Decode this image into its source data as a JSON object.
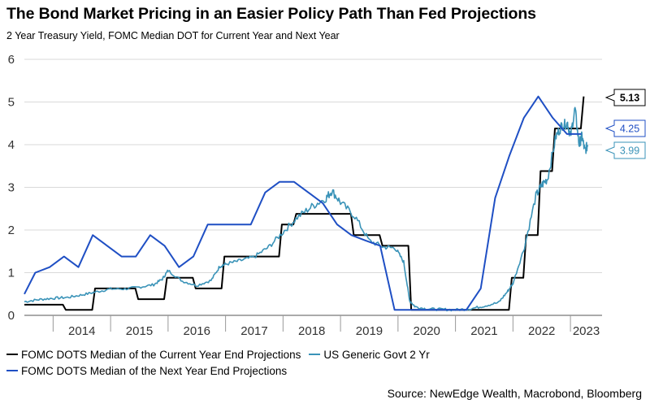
{
  "header": {
    "title": "The Bond Market Pricing in an Easier Policy Path Than Fed Projections",
    "subtitle": "2 Year Treasury Yield, FOMC Median DOT for Current Year and Next Year"
  },
  "source": "Source: NewEdge Wealth, Macrobond, Bloomberg",
  "colors": {
    "current_year": "#000000",
    "two_year": "#3a93b8",
    "next_year": "#1f4fc4",
    "grid": "#d9d9d9"
  },
  "chart_data": {
    "type": "line",
    "title": "The Bond Market Pricing in an Easier Policy Path Than Fed Projections",
    "subtitle": "2 Year Treasury Yield, FOMC Median DOT for Current Year and Next Year",
    "xlim": [
      2013.5,
      2023.55
    ],
    "ylim": [
      0,
      6
    ],
    "x_ticks": [
      "2014",
      "2015",
      "2016",
      "2017",
      "2018",
      "2019",
      "2020",
      "2021",
      "2022",
      "2023"
    ],
    "y_ticks": [
      "0",
      "1",
      "2",
      "3",
      "4",
      "5",
      "6"
    ],
    "grid": "horizontal",
    "legend_position": "bottom",
    "series": [
      {
        "name": "FOMC DOTS Median of the Current Year End Projections",
        "color": "#000000",
        "line_style": "step",
        "x": [
          2013.5,
          2013.99,
          2014.22,
          2014.48,
          2014.73,
          2014.98,
          2015.23,
          2015.48,
          2015.73,
          2015.98,
          2016.23,
          2016.48,
          2016.73,
          2016.98,
          2017.23,
          2017.48,
          2017.73,
          2017.98,
          2018.23,
          2018.48,
          2018.73,
          2018.98,
          2019.23,
          2019.48,
          2019.73,
          2019.98,
          2020.23,
          2020.48,
          2020.73,
          2020.98,
          2021.23,
          2021.48,
          2021.73,
          2021.98,
          2022.23,
          2022.48,
          2022.73,
          2022.98,
          2023.23
        ],
        "values": [
          0.25,
          0.25,
          0.13,
          0.13,
          0.63,
          0.63,
          0.63,
          0.38,
          0.38,
          0.88,
          0.88,
          0.63,
          0.63,
          1.38,
          1.38,
          1.38,
          1.38,
          2.13,
          2.38,
          2.38,
          2.38,
          2.38,
          1.88,
          1.88,
          1.63,
          1.63,
          0.13,
          0.13,
          0.13,
          0.13,
          0.13,
          0.13,
          0.13,
          0.88,
          1.88,
          3.38,
          4.38,
          4.38,
          5.13
        ]
      },
      {
        "name": "US Generic Govt 2 Yr",
        "color": "#3a93b8",
        "line_style": "noisy",
        "x": [
          2013.5,
          2013.75,
          2014.0,
          2014.25,
          2014.5,
          2014.75,
          2015.0,
          2015.25,
          2015.5,
          2015.75,
          2015.9,
          2016.0,
          2016.25,
          2016.5,
          2016.75,
          2016.9,
          2017.0,
          2017.25,
          2017.5,
          2017.75,
          2018.0,
          2018.25,
          2018.5,
          2018.75,
          2018.85,
          2019.0,
          2019.25,
          2019.5,
          2019.75,
          2019.95,
          2020.1,
          2020.2,
          2020.3,
          2020.5,
          2020.75,
          2021.0,
          2021.25,
          2021.5,
          2021.75,
          2021.9,
          2022.0,
          2022.2,
          2022.4,
          2022.5,
          2022.6,
          2022.75,
          2022.85,
          2022.95,
          2023.0,
          2023.08,
          2023.15,
          2023.2,
          2023.25,
          2023.3
        ],
        "values": [
          0.32,
          0.37,
          0.4,
          0.42,
          0.48,
          0.55,
          0.62,
          0.62,
          0.66,
          0.72,
          0.85,
          1.05,
          0.8,
          0.7,
          0.82,
          1.15,
          1.2,
          1.28,
          1.37,
          1.6,
          1.95,
          2.3,
          2.55,
          2.75,
          2.92,
          2.65,
          2.32,
          1.75,
          1.6,
          1.58,
          1.25,
          0.35,
          0.2,
          0.15,
          0.14,
          0.13,
          0.15,
          0.22,
          0.3,
          0.55,
          0.75,
          1.6,
          2.8,
          3.05,
          3.2,
          4.2,
          4.45,
          4.5,
          4.2,
          4.85,
          4.0,
          4.2,
          3.85,
          3.99
        ]
      },
      {
        "name": "FOMC DOTS Median of the Next Year End Projections",
        "color": "#1f4fc4",
        "line_style": "line",
        "x": [
          2013.5,
          2013.69,
          2013.94,
          2014.19,
          2014.44,
          2014.69,
          2014.94,
          2015.19,
          2015.44,
          2015.69,
          2015.94,
          2016.19,
          2016.44,
          2016.69,
          2016.94,
          2017.19,
          2017.44,
          2017.69,
          2017.94,
          2018.19,
          2018.44,
          2018.69,
          2018.94,
          2019.19,
          2019.44,
          2019.69,
          2019.94,
          2020.19,
          2020.44,
          2020.69,
          2020.94,
          2021.19,
          2021.44,
          2021.69,
          2021.94,
          2022.19,
          2022.44,
          2022.69,
          2022.94,
          2023.19
        ],
        "values": [
          0.5,
          1.0,
          1.13,
          1.38,
          1.13,
          1.88,
          1.63,
          1.38,
          1.38,
          1.88,
          1.63,
          1.13,
          1.38,
          2.13,
          2.13,
          2.13,
          2.13,
          2.88,
          3.13,
          3.13,
          2.88,
          2.63,
          2.13,
          1.88,
          1.75,
          1.63,
          0.13,
          0.13,
          0.13,
          0.13,
          0.13,
          0.13,
          0.63,
          2.75,
          3.75,
          4.63,
          5.13,
          4.63,
          4.25,
          4.25
        ]
      }
    ],
    "end_labels": [
      {
        "series": 0,
        "value": 5.13,
        "text": "5.13",
        "color": "#000000",
        "bold": true
      },
      {
        "series": 2,
        "value": 4.25,
        "text": "4.25",
        "color": "#1f4fc4",
        "bold": false
      },
      {
        "series": 1,
        "value": 3.99,
        "text": "3.99",
        "color": "#3a93b8",
        "bold": false
      }
    ]
  }
}
